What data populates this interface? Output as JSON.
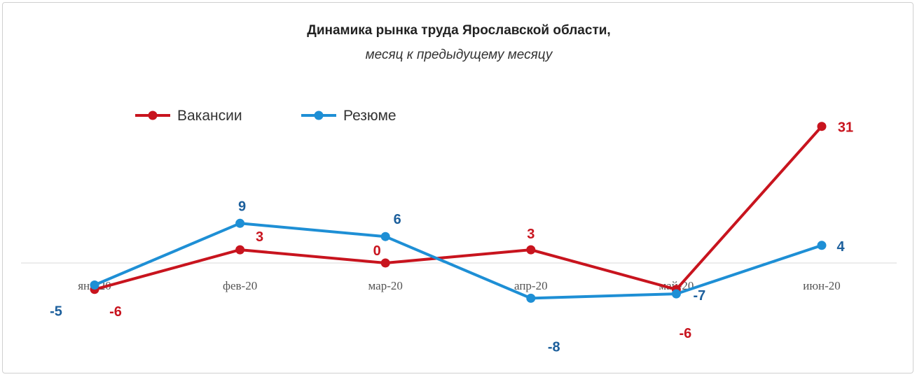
{
  "chart_data": {
    "type": "line",
    "title": "Динамика рынка труда Ярославской области,",
    "subtitle": "месяц к предыдущему месяцу",
    "categories": [
      "янв-20",
      "фев-20",
      "мар-20",
      "апр-20",
      "май-20",
      "июн-20"
    ],
    "series": [
      {
        "name": "Вакансии",
        "color": "#c8141e",
        "label_color": "#c8141e",
        "values": [
          -6,
          3,
          0,
          3,
          -6,
          31
        ]
      },
      {
        "name": "Резюме",
        "color": "#1e8fd5",
        "label_color": "#1c5f9c",
        "values": [
          -5,
          9,
          6,
          -8,
          -7,
          4
        ]
      }
    ],
    "xlabel": "",
    "ylabel": "",
    "ylim": [
      -10,
      33
    ],
    "grid": false,
    "legend_position": "top-left"
  }
}
